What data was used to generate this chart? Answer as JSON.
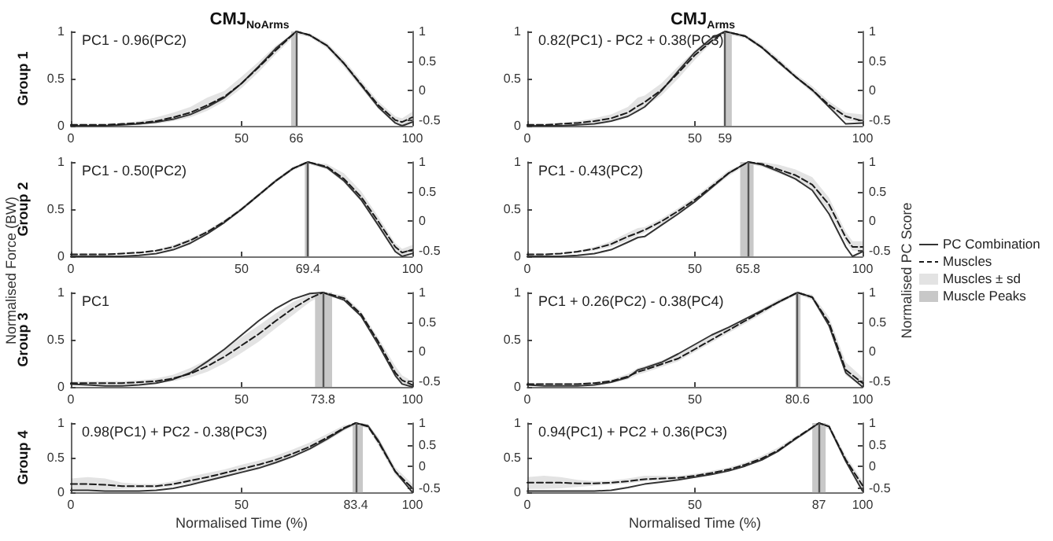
{
  "chart_data": [
    {
      "type": "line",
      "title": "CMJ$_{NoArms}$",
      "ylabel": "Group 1",
      "annotations": [
        "PC1 - 0.96(PC2)"
      ],
      "marker": "none",
      "xlim": [
        0,
        100
      ],
      "xticks": [
        0,
        50,
        66,
        100
      ],
      "ylim": [
        0,
        1
      ],
      "yticks": [
        0,
        0.5,
        1
      ],
      "y2lim": [
        -0.6,
        1
      ],
      "y2ticks": [
        -0.5,
        0,
        0.5,
        1
      ],
      "x": [
        0,
        5,
        10,
        15,
        20,
        25,
        30,
        35,
        40,
        45,
        50,
        55,
        60,
        66,
        70,
        75,
        80,
        85,
        90,
        95,
        97,
        100
      ],
      "series": [
        {
          "color": "#333333",
          "line_style": "solid",
          "values": [
            0,
            0,
            0,
            0.01,
            0.02,
            0.04,
            0.07,
            0.12,
            0.2,
            0.3,
            0.45,
            0.63,
            0.82,
            1,
            0.96,
            0.85,
            0.66,
            0.43,
            0.2,
            0.03,
            0,
            0.04
          ]
        },
        {
          "color": "#1a1a1a",
          "line_style": "dashed",
          "values": [
            0.01,
            0.01,
            0.01,
            0.02,
            0.03,
            0.05,
            0.09,
            0.14,
            0.22,
            0.31,
            0.45,
            0.62,
            0.8,
            1,
            0.96,
            0.85,
            0.66,
            0.44,
            0.22,
            0.06,
            0.04,
            0.09
          ],
          "lower": [
            0,
            0,
            0,
            0,
            0.01,
            0.02,
            0.05,
            0.09,
            0.16,
            0.26,
            0.4,
            0.57,
            0.76,
            0.97,
            0.94,
            0.82,
            0.62,
            0.4,
            0.18,
            0.02,
            0,
            0.04
          ],
          "upper": [
            0.02,
            0.02,
            0.02,
            0.03,
            0.05,
            0.09,
            0.14,
            0.2,
            0.3,
            0.37,
            0.52,
            0.68,
            0.85,
            1,
            0.98,
            0.88,
            0.7,
            0.48,
            0.26,
            0.1,
            0.08,
            0.15
          ]
        }
      ],
      "bands": [
        {
          "axis": "x",
          "from": 64.5,
          "to": 66,
          "color": "#c8c8c8"
        }
      ],
      "ref_lines": [
        {
          "axis": "x",
          "value": 66,
          "color": "#555555"
        }
      ]
    },
    {
      "type": "line",
      "ylabel": "Group 2",
      "annotations": [
        "PC1 - 0.50(PC2)",
        "Normalised Force (BW)"
      ],
      "marker": "none",
      "xlim": [
        0,
        100
      ],
      "xticks": [
        0,
        50,
        69.4,
        100
      ],
      "ylim": [
        0,
        1
      ],
      "yticks": [
        0,
        0.5,
        1
      ],
      "y2lim": [
        -0.6,
        1
      ],
      "y2ticks": [
        -0.5,
        0,
        0.5,
        1
      ],
      "x": [
        0,
        5,
        10,
        15,
        20,
        25,
        30,
        35,
        40,
        45,
        50,
        55,
        60,
        65,
        69.4,
        75,
        80,
        85,
        90,
        95,
        97,
        100
      ],
      "series": [
        {
          "color": "#333333",
          "line_style": "solid",
          "values": [
            0,
            0,
            0,
            0,
            0.01,
            0.03,
            0.07,
            0.14,
            0.24,
            0.36,
            0.5,
            0.65,
            0.8,
            0.93,
            1,
            0.94,
            0.8,
            0.6,
            0.33,
            0.05,
            0,
            0.03
          ]
        },
        {
          "color": "#1a1a1a",
          "line_style": "dashed",
          "values": [
            0.02,
            0.02,
            0.02,
            0.03,
            0.04,
            0.06,
            0.1,
            0.17,
            0.26,
            0.37,
            0.5,
            0.65,
            0.8,
            0.93,
            1,
            0.95,
            0.82,
            0.63,
            0.37,
            0.1,
            0.04,
            0.07
          ],
          "lower": [
            0.01,
            0.01,
            0.01,
            0.02,
            0.03,
            0.05,
            0.08,
            0.15,
            0.24,
            0.35,
            0.48,
            0.63,
            0.78,
            0.91,
            0.98,
            0.92,
            0.78,
            0.58,
            0.32,
            0.06,
            0.01,
            0.03
          ],
          "upper": [
            0.03,
            0.03,
            0.03,
            0.04,
            0.05,
            0.07,
            0.12,
            0.19,
            0.28,
            0.39,
            0.52,
            0.67,
            0.82,
            0.95,
            1,
            0.98,
            0.88,
            0.69,
            0.42,
            0.14,
            0.08,
            0.12
          ]
        }
      ],
      "bands": [
        {
          "axis": "x",
          "from": 68.5,
          "to": 69.8,
          "color": "#c8c8c8"
        }
      ],
      "ref_lines": [
        {
          "axis": "x",
          "value": 69.4,
          "color": "#555555"
        }
      ]
    },
    {
      "type": "line",
      "ylabel": "Group 3",
      "annotations": [
        "PC1"
      ],
      "marker": "none",
      "xlim": [
        0,
        100
      ],
      "xticks": [
        0,
        50,
        73.8,
        100
      ],
      "ylim": [
        0,
        1
      ],
      "yticks": [
        0,
        0.5,
        1
      ],
      "y2lim": [
        -0.6,
        1
      ],
      "y2ticks": [
        -0.5,
        0,
        0.5,
        1
      ],
      "x": [
        0,
        5,
        10,
        15,
        20,
        25,
        30,
        35,
        40,
        45,
        50,
        55,
        60,
        65,
        70,
        73.8,
        80,
        85,
        90,
        95,
        97,
        100
      ],
      "series": [
        {
          "color": "#333333",
          "line_style": "solid",
          "values": [
            0.03,
            0.02,
            0.01,
            0.01,
            0.02,
            0.04,
            0.08,
            0.15,
            0.27,
            0.4,
            0.55,
            0.7,
            0.83,
            0.93,
            0.99,
            1,
            0.92,
            0.75,
            0.45,
            0.12,
            0.03,
            0
          ]
        },
        {
          "color": "#1a1a1a",
          "line_style": "dashed",
          "values": [
            0.04,
            0.04,
            0.04,
            0.04,
            0.05,
            0.06,
            0.09,
            0.14,
            0.22,
            0.32,
            0.44,
            0.56,
            0.7,
            0.83,
            0.94,
            1,
            0.94,
            0.77,
            0.48,
            0.15,
            0.07,
            0.02
          ],
          "lower": [
            0.02,
            0.02,
            0.02,
            0.02,
            0.03,
            0.04,
            0.06,
            0.1,
            0.16,
            0.25,
            0.36,
            0.48,
            0.62,
            0.76,
            0.9,
            0.97,
            0.92,
            0.74,
            0.45,
            0.1,
            0.03,
            0
          ],
          "upper": [
            0.06,
            0.06,
            0.06,
            0.06,
            0.07,
            0.09,
            0.13,
            0.2,
            0.29,
            0.4,
            0.53,
            0.65,
            0.78,
            0.9,
            0.98,
            1,
            0.97,
            0.8,
            0.52,
            0.22,
            0.12,
            0.06
          ]
        }
      ],
      "bands": [
        {
          "axis": "x",
          "from": 71.5,
          "to": 76.5,
          "color": "#c8c8c8"
        }
      ],
      "ref_lines": [
        {
          "axis": "x",
          "value": 73.8,
          "color": "#555555"
        }
      ]
    },
    {
      "type": "line",
      "ylabel": "Group 4",
      "xlabel": "Normalised Time (%)",
      "annotations": [
        "0.98(PC1) + PC2 - 0.38(PC3)"
      ],
      "marker": "none",
      "xlim": [
        0,
        100
      ],
      "xticks": [
        0,
        50,
        83.4,
        100
      ],
      "ylim": [
        0,
        1
      ],
      "yticks": [
        0,
        0.5,
        1
      ],
      "y2lim": [
        -0.6,
        1
      ],
      "y2ticks": [
        -0.5,
        0,
        0.5,
        1
      ],
      "x": [
        0,
        5,
        10,
        15,
        20,
        25,
        30,
        35,
        40,
        45,
        50,
        55,
        60,
        65,
        70,
        75,
        80,
        83.4,
        87,
        90,
        95,
        100
      ],
      "series": [
        {
          "color": "#333333",
          "line_style": "solid",
          "values": [
            0.03,
            0.03,
            0.02,
            0.02,
            0.02,
            0.03,
            0.06,
            0.11,
            0.17,
            0.23,
            0.29,
            0.35,
            0.43,
            0.52,
            0.63,
            0.77,
            0.92,
            1,
            0.96,
            0.75,
            0.3,
            0
          ]
        },
        {
          "color": "#1a1a1a",
          "line_style": "dashed",
          "values": [
            0.12,
            0.12,
            0.11,
            0.09,
            0.09,
            0.09,
            0.12,
            0.17,
            0.22,
            0.28,
            0.34,
            0.4,
            0.47,
            0.56,
            0.66,
            0.79,
            0.93,
            1,
            0.95,
            0.73,
            0.3,
            0.06
          ],
          "lower": [
            0.04,
            0.04,
            0.04,
            0.05,
            0.06,
            0.06,
            0.09,
            0.13,
            0.17,
            0.22,
            0.28,
            0.34,
            0.41,
            0.5,
            0.61,
            0.74,
            0.89,
            0.97,
            0.92,
            0.68,
            0.25,
            0.02
          ],
          "upper": [
            0.2,
            0.22,
            0.2,
            0.14,
            0.12,
            0.12,
            0.16,
            0.23,
            0.28,
            0.33,
            0.4,
            0.46,
            0.53,
            0.62,
            0.72,
            0.84,
            0.97,
            1,
            0.99,
            0.8,
            0.36,
            0.12
          ]
        }
      ],
      "bands": [
        {
          "axis": "x",
          "from": 82.5,
          "to": 85.5,
          "color": "#c8c8c8"
        }
      ],
      "ref_lines": [
        {
          "axis": "x",
          "value": 83.4,
          "color": "#555555"
        }
      ]
    },
    {
      "type": "line",
      "title": "CMJ$_{Arms}$",
      "annotations": [
        "0.82(PC1) - PC2 + 0.38(PC3)"
      ],
      "marker": "none",
      "xlim": [
        0,
        100
      ],
      "xticks": [
        0,
        50,
        59,
        100
      ],
      "ylim": [
        0,
        1
      ],
      "yticks": [
        0,
        0.5,
        1
      ],
      "y2lim": [
        -0.6,
        1
      ],
      "y2ticks": [
        -0.5,
        0,
        0.5,
        1
      ],
      "x": [
        0,
        5,
        10,
        15,
        20,
        25,
        30,
        33,
        35,
        40,
        45,
        50,
        55,
        59,
        65,
        70,
        75,
        80,
        85,
        90,
        95,
        100
      ],
      "series": [
        {
          "color": "#333333",
          "line_style": "solid",
          "values": [
            0,
            0,
            0,
            0.01,
            0.02,
            0.05,
            0.1,
            0.16,
            0.2,
            0.37,
            0.58,
            0.78,
            0.93,
            1,
            0.95,
            0.83,
            0.67,
            0.52,
            0.38,
            0.2,
            0.02,
            0.03
          ]
        },
        {
          "color": "#1a1a1a",
          "line_style": "dashed",
          "values": [
            0.01,
            0.01,
            0.02,
            0.03,
            0.05,
            0.08,
            0.14,
            0.21,
            0.25,
            0.38,
            0.56,
            0.75,
            0.9,
            1,
            0.95,
            0.83,
            0.68,
            0.52,
            0.38,
            0.22,
            0.1,
            0.05
          ],
          "lower": [
            0,
            0,
            0.01,
            0.02,
            0.03,
            0.05,
            0.1,
            0.16,
            0.2,
            0.32,
            0.5,
            0.7,
            0.88,
            0.97,
            0.93,
            0.81,
            0.65,
            0.5,
            0.35,
            0.19,
            0.06,
            0.03
          ],
          "upper": [
            0.02,
            0.02,
            0.03,
            0.05,
            0.08,
            0.12,
            0.2,
            0.3,
            0.32,
            0.45,
            0.63,
            0.8,
            0.95,
            1,
            0.97,
            0.86,
            0.71,
            0.55,
            0.42,
            0.26,
            0.14,
            0.12
          ]
        }
      ],
      "bands": [
        {
          "axis": "x",
          "from": 59,
          "to": 61,
          "color": "#c8c8c8"
        }
      ],
      "ref_lines": [
        {
          "axis": "x",
          "value": 59,
          "color": "#555555"
        }
      ]
    },
    {
      "type": "line",
      "annotations": [
        "PC1 - 0.43(PC2)",
        "Muscles ± sd"
      ],
      "y2label": "Normalised PC Score",
      "legend": "right",
      "marker": "none",
      "xlim": [
        0,
        100
      ],
      "xticks": [
        0,
        50,
        65.8,
        100
      ],
      "ylim": [
        0,
        1
      ],
      "yticks": [
        0,
        0.5,
        1
      ],
      "y2lim": [
        -0.6,
        1
      ],
      "y2ticks": [
        -0.5,
        0,
        0.5,
        1
      ],
      "x": [
        0,
        5,
        10,
        15,
        20,
        25,
        30,
        33,
        35,
        40,
        45,
        50,
        55,
        60,
        65.8,
        70,
        75,
        80,
        85,
        90,
        95,
        97,
        100
      ],
      "series": [
        {
          "name": "PC Combination",
          "color": "#333333",
          "line_style": "solid",
          "values": [
            0,
            0,
            0,
            0.01,
            0.03,
            0.07,
            0.15,
            0.2,
            0.21,
            0.33,
            0.45,
            0.58,
            0.73,
            0.88,
            1,
            0.97,
            0.9,
            0.82,
            0.7,
            0.45,
            0.1,
            0,
            0.05
          ]
        },
        {
          "name": "Muscles",
          "color": "#1a1a1a",
          "line_style": "dashed",
          "values": [
            0.02,
            0.02,
            0.03,
            0.05,
            0.08,
            0.13,
            0.21,
            0.25,
            0.28,
            0.37,
            0.48,
            0.6,
            0.74,
            0.88,
            1,
            0.98,
            0.92,
            0.86,
            0.76,
            0.55,
            0.2,
            0.1,
            0.1
          ],
          "lower": [
            0.01,
            0.01,
            0.02,
            0.04,
            0.06,
            0.1,
            0.17,
            0.22,
            0.25,
            0.34,
            0.45,
            0.57,
            0.71,
            0.85,
            0.98,
            0.95,
            0.88,
            0.82,
            0.7,
            0.48,
            0.15,
            0.06,
            0.06
          ],
          "upper": [
            0.03,
            0.03,
            0.04,
            0.06,
            0.1,
            0.16,
            0.25,
            0.3,
            0.31,
            0.4,
            0.51,
            0.63,
            0.77,
            0.91,
            1,
            1,
            0.97,
            0.92,
            0.84,
            0.62,
            0.26,
            0.16,
            0.16
          ]
        }
      ],
      "bands": [
        {
          "axis": "x",
          "from": 63.5,
          "to": 67.5,
          "label": "Muscle Peaks",
          "color": "#c8c8c8"
        }
      ],
      "ref_lines": [
        {
          "axis": "x",
          "value": 65.8,
          "color": "#555555"
        }
      ]
    },
    {
      "type": "line",
      "annotations": [
        "PC1 + 0.26(PC2) - 0.38(PC4)"
      ],
      "marker": "none",
      "xlim": [
        0,
        100
      ],
      "xticks": [
        0,
        50,
        80.6,
        100
      ],
      "ylim": [
        0,
        1
      ],
      "yticks": [
        0,
        0.5,
        1
      ],
      "y2lim": [
        -0.6,
        1
      ],
      "y2ticks": [
        -0.5,
        0,
        0.5,
        1
      ],
      "x": [
        0,
        5,
        10,
        15,
        20,
        25,
        30,
        33,
        35,
        40,
        45,
        50,
        55,
        60,
        65,
        70,
        75,
        80.6,
        85,
        90,
        95,
        100
      ],
      "series": [
        {
          "color": "#333333",
          "line_style": "solid",
          "values": [
            0.02,
            0.01,
            0.01,
            0.01,
            0.02,
            0.05,
            0.1,
            0.18,
            0.2,
            0.26,
            0.35,
            0.45,
            0.55,
            0.63,
            0.72,
            0.81,
            0.9,
            1,
            0.95,
            0.65,
            0.15,
            0
          ]
        },
        {
          "color": "#1a1a1a",
          "line_style": "dashed",
          "values": [
            0.03,
            0.03,
            0.03,
            0.03,
            0.04,
            0.06,
            0.11,
            0.16,
            0.18,
            0.24,
            0.3,
            0.4,
            0.5,
            0.6,
            0.7,
            0.8,
            0.9,
            1,
            0.95,
            0.68,
            0.18,
            0.04
          ],
          "lower": [
            0.02,
            0.02,
            0.02,
            0.02,
            0.03,
            0.04,
            0.08,
            0.13,
            0.15,
            0.21,
            0.27,
            0.37,
            0.47,
            0.57,
            0.67,
            0.77,
            0.88,
            0.98,
            0.92,
            0.63,
            0.12,
            0
          ],
          "upper": [
            0.04,
            0.04,
            0.04,
            0.04,
            0.05,
            0.08,
            0.14,
            0.2,
            0.22,
            0.28,
            0.35,
            0.44,
            0.54,
            0.63,
            0.73,
            0.83,
            0.93,
            1,
            0.98,
            0.74,
            0.26,
            0.1
          ]
        }
      ],
      "bands": [
        {
          "axis": "x",
          "from": 80,
          "to": 81.5,
          "color": "#c8c8c8"
        }
      ],
      "ref_lines": [
        {
          "axis": "x",
          "value": 80.6,
          "color": "#555555"
        }
      ]
    },
    {
      "type": "line",
      "xlabel": "Normalised Time (%)",
      "annotations": [
        "0.94(PC1) + PC2 + 0.36(PC3)"
      ],
      "marker": "none",
      "xlim": [
        0,
        100
      ],
      "xticks": [
        0,
        50,
        87,
        100
      ],
      "ylim": [
        0,
        1
      ],
      "yticks": [
        0,
        0.5,
        1
      ],
      "y2lim": [
        -0.6,
        1
      ],
      "y2ticks": [
        -0.5,
        0,
        0.5,
        1
      ],
      "x": [
        0,
        5,
        10,
        15,
        20,
        25,
        30,
        35,
        40,
        45,
        50,
        55,
        60,
        65,
        70,
        75,
        80,
        87,
        90,
        95,
        100
      ],
      "series": [
        {
          "color": "#333333",
          "line_style": "solid",
          "values": [
            0.02,
            0.02,
            0.02,
            0.02,
            0.02,
            0.03,
            0.07,
            0.12,
            0.15,
            0.18,
            0.22,
            0.26,
            0.31,
            0.38,
            0.47,
            0.6,
            0.77,
            1,
            0.95,
            0.45,
            0.02
          ]
        },
        {
          "color": "#1a1a1a",
          "line_style": "dashed",
          "values": [
            0.14,
            0.14,
            0.14,
            0.13,
            0.13,
            0.14,
            0.16,
            0.19,
            0.2,
            0.21,
            0.24,
            0.28,
            0.33,
            0.4,
            0.49,
            0.61,
            0.78,
            1,
            0.95,
            0.47,
            0.1
          ],
          "lower": [
            0.05,
            0.05,
            0.06,
            0.08,
            0.1,
            0.11,
            0.13,
            0.16,
            0.17,
            0.19,
            0.22,
            0.26,
            0.31,
            0.37,
            0.46,
            0.58,
            0.75,
            0.97,
            0.91,
            0.42,
            0.05
          ],
          "upper": [
            0.22,
            0.24,
            0.22,
            0.18,
            0.16,
            0.17,
            0.2,
            0.24,
            0.24,
            0.24,
            0.27,
            0.31,
            0.36,
            0.43,
            0.53,
            0.65,
            0.81,
            1,
            0.99,
            0.53,
            0.16
          ]
        }
      ],
      "bands": [
        {
          "axis": "x",
          "from": 85,
          "to": 89,
          "color": "#c8c8c8"
        }
      ],
      "ref_lines": [
        {
          "axis": "x",
          "value": 87,
          "color": "#555555"
        }
      ]
    }
  ]
}
